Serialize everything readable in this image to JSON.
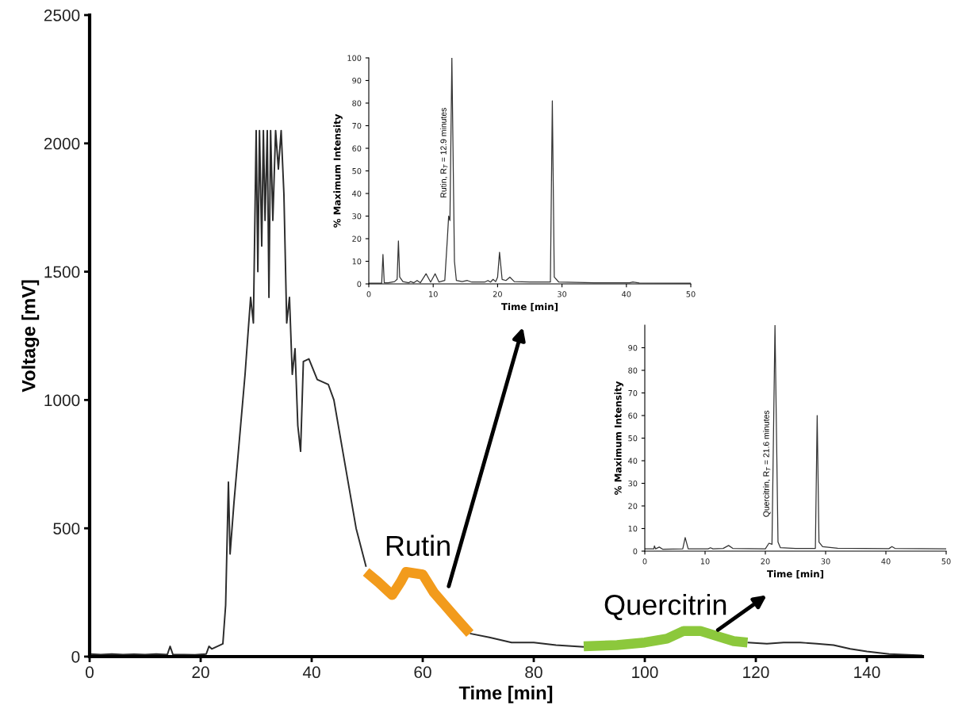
{
  "chart_data": [
    {
      "type": "line",
      "xlabel": "Time [min]",
      "ylabel": "Voltage [mV]",
      "xlim": [
        0,
        150
      ],
      "xticks": [
        0,
        20,
        40,
        60,
        80,
        100,
        120,
        140
      ],
      "ylim": [
        0,
        2500
      ],
      "yticks": [
        0,
        500,
        1000,
        1500,
        2000,
        2500
      ],
      "grid": false,
      "legend": false,
      "marker": "none",
      "line_style": "solid",
      "series": [
        {
          "color": "#2b2b2b",
          "x": [
            0,
            2,
            4,
            6,
            8,
            10,
            12,
            14,
            14.5,
            15,
            17,
            19,
            21,
            21.5,
            22,
            23,
            24,
            24.5,
            25,
            25.3,
            26,
            27,
            28,
            29,
            29.5,
            30,
            30.3,
            30.6,
            31,
            31.3,
            31.6,
            32,
            32.3,
            32.6,
            33,
            33.5,
            34,
            34.5,
            35,
            35.5,
            36,
            36.5,
            37,
            37.5,
            38,
            38.5,
            39.5,
            41,
            43,
            44,
            46,
            48,
            49.8,
            58,
            68.5,
            72,
            76,
            80,
            84,
            89,
            103,
            118.5,
            122,
            125,
            128,
            131,
            134,
            137,
            140,
            144,
            150
          ],
          "values": [
            10,
            8,
            10,
            8,
            9,
            8,
            10,
            8,
            40,
            8,
            8,
            7,
            10,
            40,
            30,
            40,
            50,
            200,
            680,
            400,
            600,
            850,
            1100,
            1400,
            1300,
            2050,
            1500,
            2050,
            1600,
            2050,
            1700,
            2050,
            1400,
            2050,
            1700,
            2050,
            1900,
            2050,
            1800,
            1300,
            1400,
            1100,
            1200,
            900,
            800,
            1150,
            1160,
            1080,
            1060,
            1000,
            750,
            500,
            350,
            null,
            90,
            75,
            55,
            55,
            45,
            38,
            null,
            55,
            50,
            55,
            55,
            50,
            45,
            30,
            20,
            10,
            5
          ]
        },
        {
          "name": "Rutin",
          "color": "#f29b1c",
          "x": [
            49.8,
            52,
            54.5,
            56,
            57,
            60,
            62,
            64,
            66,
            68.5
          ],
          "values": [
            330,
            290,
            240,
            290,
            330,
            320,
            250,
            200,
            150,
            90
          ]
        },
        {
          "name": "Quercitrin",
          "color": "#8cc83c",
          "x": [
            89,
            95,
            100,
            104,
            107,
            110,
            113,
            116,
            118.5
          ],
          "values": [
            40,
            45,
            55,
            70,
            100,
            100,
            80,
            60,
            55
          ]
        }
      ]
    },
    {
      "type": "line",
      "xlabel": "Time [min]",
      "ylabel": "% Maximum Intensity",
      "xlim": [
        0,
        50
      ],
      "xticks": [
        0,
        10,
        20,
        30,
        40,
        50
      ],
      "ylim": [
        0,
        100
      ],
      "yticks": [
        0,
        10,
        20,
        30,
        40,
        50,
        60,
        70,
        80,
        90,
        100
      ],
      "grid": false,
      "legend": false,
      "marker": "none",
      "line_style": "solid",
      "annotations": [
        {
          "text": "Rutin, R$_{T}$ = 12.9 minutes",
          "x": 12.3,
          "y": 38
        }
      ],
      "series": [
        {
          "color": "#333333",
          "x": [
            0,
            2.0,
            2.2,
            2.4,
            3,
            4,
            4.4,
            4.6,
            4.8,
            5.3,
            6.2,
            6.5,
            7,
            7.5,
            8,
            8.9,
            9.6,
            10.3,
            10.9,
            11.8,
            12.2,
            12.4,
            12.6,
            12.9,
            13.3,
            13.6,
            14.5,
            15.3,
            16,
            18,
            18.5,
            18.9,
            19.3,
            19.7,
            20.0,
            20.3,
            20.7,
            21.3,
            21.9,
            22.6,
            25,
            28.2,
            28.5,
            28.8,
            29.5,
            35,
            40.5,
            41,
            42,
            50
          ],
          "values": [
            0.3,
            0.3,
            13,
            0.5,
            0.5,
            1,
            2,
            19,
            3,
            1,
            0.5,
            1,
            0.5,
            1.5,
            0.5,
            4.5,
            0.8,
            4.5,
            0.8,
            1.5,
            20,
            30,
            28,
            100,
            10,
            1.5,
            1,
            1.5,
            0.8,
            0.8,
            1.5,
            0.8,
            2,
            1,
            3,
            14,
            2,
            1.5,
            3,
            1,
            0.8,
            0.8,
            81,
            3,
            0.8,
            0.5,
            0.5,
            0.8,
            0.4,
            0.3
          ]
        }
      ]
    },
    {
      "type": "line",
      "xlabel": "Time [min]",
      "ylabel": "% Maximum Intensity",
      "xlim": [
        0,
        50
      ],
      "xticks": [
        0,
        10,
        20,
        30,
        40,
        50
      ],
      "ylim": [
        0,
        100
      ],
      "yticks": [
        0,
        10,
        20,
        30,
        40,
        50,
        60,
        70,
        80,
        90
      ],
      "grid": false,
      "legend": false,
      "marker": "none",
      "line_style": "solid",
      "annotations": [
        {
          "text": "Quercitrin, R$_{T}$ = 21.6 minutes",
          "x": 20.9,
          "y": 15
        }
      ],
      "series": [
        {
          "color": "#333333",
          "x": [
            0,
            1.5,
            1.6,
            1.8,
            2.4,
            3,
            6.3,
            6.7,
            7.2,
            10.5,
            10.9,
            11.3,
            13,
            13.9,
            14.6,
            20,
            20.6,
            21.1,
            21.6,
            22.1,
            22.5,
            25,
            28.3,
            28.6,
            28.9,
            29.5,
            32,
            40.5,
            41,
            41.5,
            50
          ],
          "values": [
            1,
            1,
            2.3,
            1,
            1.8,
            0.8,
            1,
            6,
            1,
            1,
            1.5,
            1,
            1.2,
            2.5,
            1.2,
            1,
            3.5,
            3,
            100,
            4,
            1.5,
            1.2,
            1.2,
            60,
            4,
            2,
            1.3,
            1.1,
            2,
            1.2,
            1
          ]
        }
      ]
    }
  ]
}
